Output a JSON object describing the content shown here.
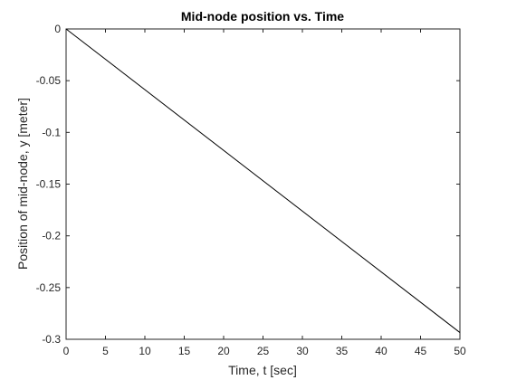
{
  "chart_data": {
    "type": "line",
    "title": "Mid-node position vs. Time",
    "xlabel": "Time, t [sec]",
    "ylabel": "Position of mid-node, y [meter]",
    "xlim": [
      0,
      50
    ],
    "ylim": [
      -0.3,
      0
    ],
    "x_ticks": [
      0,
      5,
      10,
      15,
      20,
      25,
      30,
      35,
      40,
      45,
      50
    ],
    "x_tick_labels": [
      "0",
      "5",
      "10",
      "15",
      "20",
      "25",
      "30",
      "35",
      "40",
      "45",
      "50"
    ],
    "y_ticks": [
      0,
      -0.05,
      -0.1,
      -0.15,
      -0.2,
      -0.25,
      -0.3
    ],
    "y_tick_labels": [
      "0",
      "-0.05",
      "-0.1",
      "-0.15",
      "-0.2",
      "-0.25",
      "-0.3"
    ],
    "grid": false,
    "box": true,
    "series": [
      {
        "color": "#000000",
        "x": [
          0,
          50
        ],
        "y": [
          0,
          -0.2935
        ]
      }
    ]
  }
}
